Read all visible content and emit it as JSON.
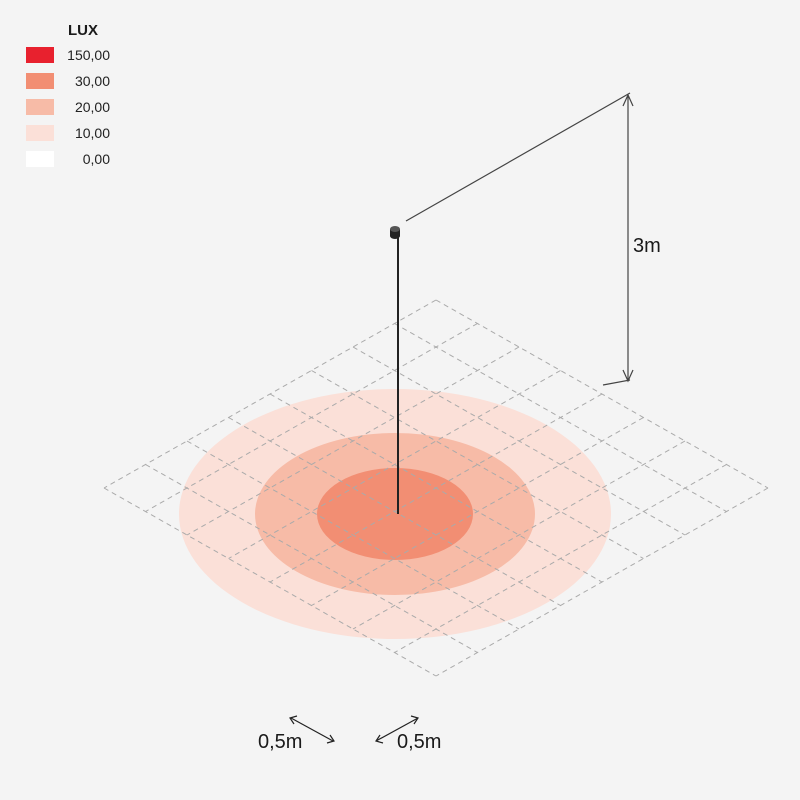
{
  "legend": {
    "title": "LUX",
    "items": [
      {
        "value": "150,00",
        "color": "#e8212e"
      },
      {
        "value": "30,00",
        "color": "#f28e73"
      },
      {
        "value": "20,00",
        "color": "#f7bba7"
      },
      {
        "value": "10,00",
        "color": "#fbe0d8"
      },
      {
        "value": "0,00",
        "color": "#ffffff"
      }
    ]
  },
  "dimensions": {
    "height_label": "3m",
    "grid_x_label": "0,5m",
    "grid_y_label": "0,5m"
  },
  "colors": {
    "background": "#f4f4f4",
    "grid": "#aaaaaa",
    "dimension_line": "#444444"
  }
}
